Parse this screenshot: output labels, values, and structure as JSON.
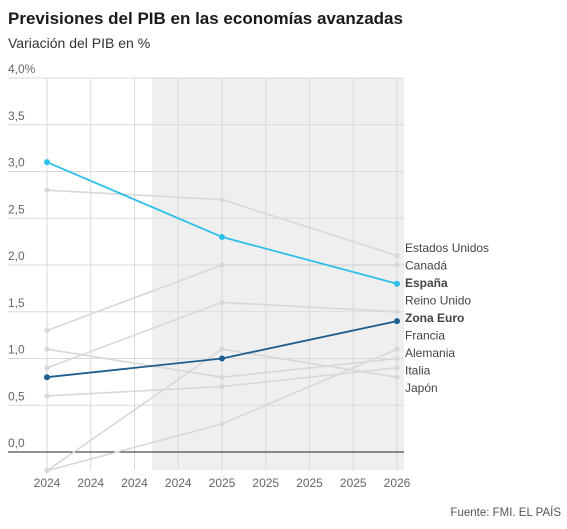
{
  "header": {
    "title": "Previsiones del PIB en las economías avanzadas",
    "subtitle": "Variación del PIB en %"
  },
  "footer": {
    "source": "Fuente: FMI. EL PAÍS"
  },
  "colors": {
    "espana": "#2ec0ea",
    "zona_euro": "#1f5f8f",
    "other": "#d8d8d8",
    "shade": "#efefef",
    "grid": "#dadada",
    "zero": "#222222"
  },
  "chart_data": {
    "type": "line",
    "x": [
      "2024",
      "2025",
      "2026"
    ],
    "ylim": [
      0,
      4
    ],
    "y_ticks": [
      "0,0",
      "0,5",
      "1,0",
      "1,5",
      "2,0",
      "2,5",
      "3,0",
      "3,5",
      "4,0%"
    ],
    "x_ticks": [
      "2024",
      "2024",
      "2024",
      "2024",
      "2025",
      "2025",
      "2025",
      "2025",
      "2026"
    ],
    "series": [
      {
        "name": "Estados Unidos",
        "values": [
          2.8,
          2.7,
          2.1
        ],
        "highlight": false
      },
      {
        "name": "Canadá",
        "values": [
          1.3,
          2.0,
          2.0
        ],
        "highlight": false
      },
      {
        "name": "España",
        "values": [
          3.1,
          2.3,
          1.8
        ],
        "highlight": true,
        "color": "#2ec0ea"
      },
      {
        "name": "Reino Unido",
        "values": [
          0.9,
          1.6,
          1.5
        ],
        "highlight": false
      },
      {
        "name": "Zona Euro",
        "values": [
          0.8,
          1.0,
          1.4
        ],
        "highlight": true,
        "color": "#1f5f8f"
      },
      {
        "name": "Francia",
        "values": [
          1.1,
          0.8,
          1.0
        ],
        "highlight": false
      },
      {
        "name": "Alemania",
        "values": [
          -0.2,
          0.3,
          1.1
        ],
        "highlight": false
      },
      {
        "name": "Italia",
        "values": [
          0.6,
          0.7,
          0.9
        ],
        "highlight": false
      },
      {
        "name": "Japón",
        "values": [
          -0.2,
          1.1,
          0.8
        ],
        "highlight": false
      }
    ],
    "shaded_region": "forecast",
    "grid": true
  }
}
